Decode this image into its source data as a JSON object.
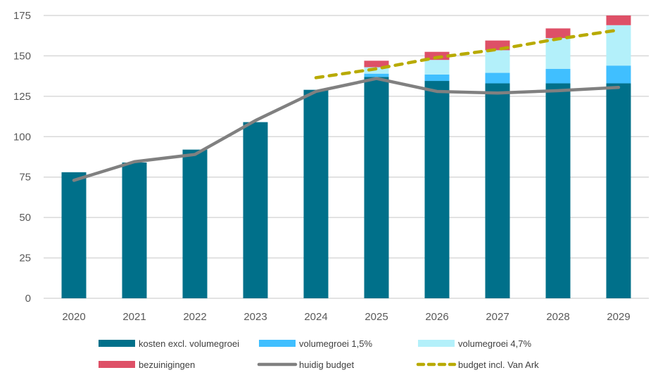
{
  "chart_data": {
    "type": "bar",
    "stacked": true,
    "categories": [
      "2020",
      "2021",
      "2022",
      "2023",
      "2024",
      "2025",
      "2026",
      "2027",
      "2028",
      "2029"
    ],
    "ylim": [
      0,
      175
    ],
    "yticks": [
      0,
      25,
      50,
      75,
      100,
      125,
      150,
      175
    ],
    "grid": true,
    "legend_position": "bottom",
    "series": [
      {
        "name": "kosten excl. volumegroei",
        "kind": "bar",
        "color": "#00708A",
        "values": [
          78,
          84,
          92,
          109,
          129,
          137,
          134.5,
          133,
          133,
          133
        ]
      },
      {
        "name": "volumegroei 1,5%",
        "kind": "bar",
        "color": "#40BFFF",
        "values": [
          0,
          0,
          0,
          0,
          0,
          2,
          4,
          6.5,
          9,
          11
        ]
      },
      {
        "name": "volumegroei 4,7%",
        "kind": "bar",
        "color": "#B3F0FA",
        "values": [
          0,
          0,
          0,
          0,
          0,
          4,
          9,
          14,
          19,
          25
        ]
      },
      {
        "name": "bezuinigingen",
        "kind": "bar",
        "color": "#DE5067",
        "values": [
          0,
          0,
          0,
          0,
          0,
          4,
          5,
          6,
          6,
          6
        ]
      },
      {
        "name": "huidig budget",
        "kind": "line",
        "color": "#808080",
        "values": [
          73,
          84.5,
          89,
          110,
          128,
          136,
          128,
          127,
          128.5,
          130.5
        ]
      },
      {
        "name": "budget incl. Van Ark",
        "kind": "dashed-line",
        "color": "#B8AA00",
        "values": [
          null,
          null,
          null,
          null,
          136.5,
          142,
          149,
          154,
          160.5,
          166
        ]
      }
    ]
  }
}
